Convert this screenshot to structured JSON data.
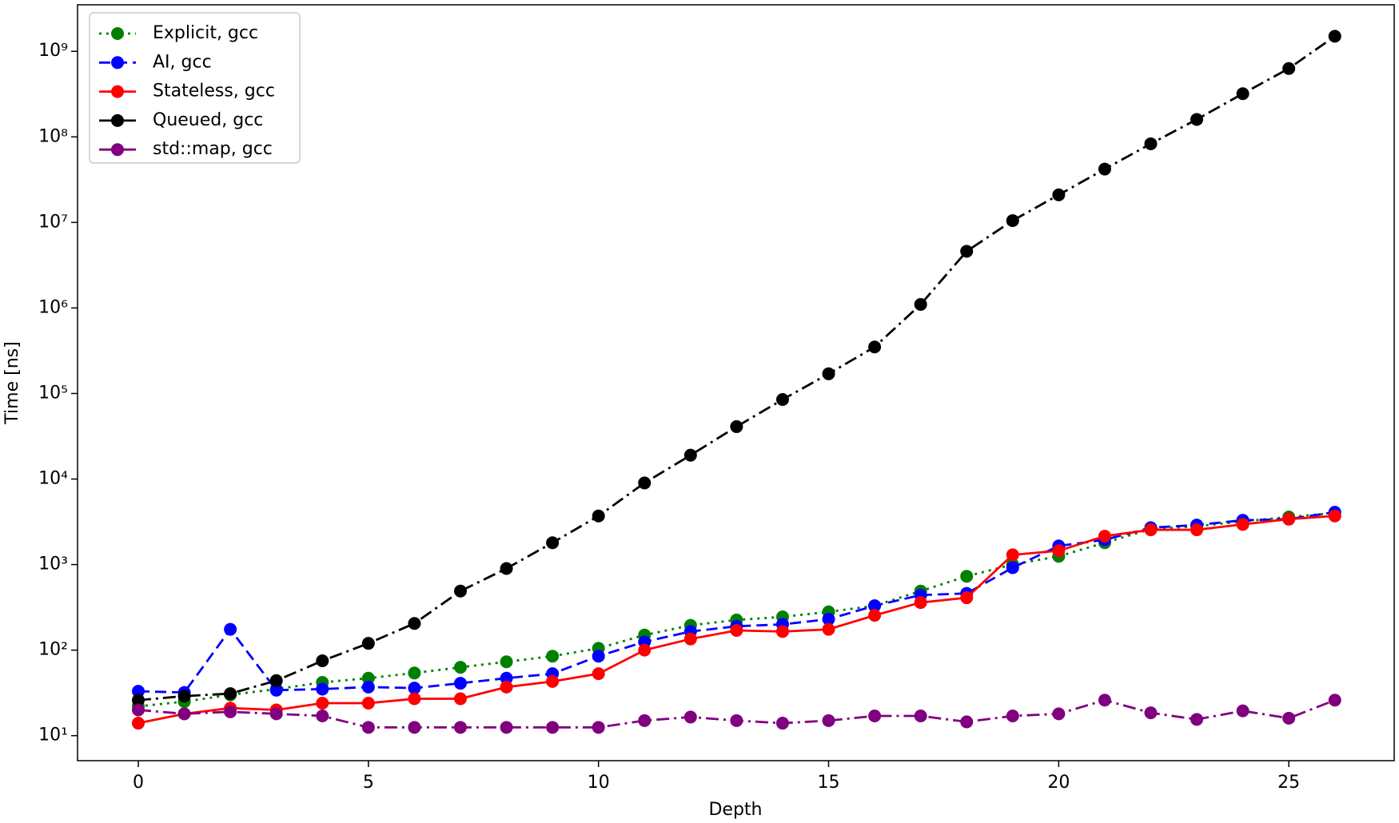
{
  "chart_data": {
    "type": "line",
    "x_label": "Depth",
    "y_label": "Time [ns]",
    "x": [
      0,
      1,
      2,
      3,
      4,
      5,
      6,
      7,
      8,
      9,
      10,
      11,
      12,
      13,
      14,
      15,
      16,
      17,
      18,
      19,
      20,
      21,
      22,
      23,
      24,
      25,
      26
    ],
    "series": [
      {
        "name": "Explicit, gcc",
        "color": "#008000",
        "linestyle": "dotted",
        "values": [
          22,
          25,
          30,
          35,
          42,
          47,
          54,
          63,
          73,
          85,
          105,
          150,
          195,
          225,
          245,
          280,
          330,
          490,
          730,
          1000,
          1250,
          1800,
          2600,
          2800,
          3200,
          3600,
          4000
        ]
      },
      {
        "name": "AI, gcc",
        "color": "#0000ff",
        "linestyle": "dashed",
        "values": [
          33,
          32,
          175,
          34,
          35,
          37,
          36,
          41,
          47,
          53,
          85,
          125,
          165,
          190,
          200,
          230,
          330,
          440,
          460,
          920,
          1650,
          1950,
          2700,
          2900,
          3300,
          3400,
          4100
        ]
      },
      {
        "name": "Stateless, gcc",
        "color": "#ff0000",
        "linestyle": "solid",
        "values": [
          14,
          18,
          21,
          20,
          24,
          24,
          27,
          27,
          37,
          43,
          53,
          100,
          135,
          170,
          165,
          175,
          255,
          360,
          410,
          1300,
          1450,
          2150,
          2550,
          2550,
          2950,
          3400,
          3700
        ]
      },
      {
        "name": "Queued, gcc",
        "color": "#000000",
        "linestyle": "dashdot",
        "values": [
          26,
          29,
          31,
          44,
          75,
          120,
          205,
          490,
          900,
          1800,
          3700,
          9000,
          19000,
          41000,
          85000,
          170000,
          350000,
          1100000,
          4600000,
          10500000,
          21000000,
          42000000,
          83000000,
          160000000,
          320000000,
          630000000,
          1500000000
        ]
      },
      {
        "name": "std::map, gcc",
        "color": "#800080",
        "linestyle": "dashdot",
        "values": [
          20,
          18,
          19,
          18,
          17,
          12.5,
          12.5,
          12.5,
          12.5,
          12.5,
          12.5,
          15,
          16.5,
          15,
          14,
          15,
          17,
          17,
          14.5,
          17,
          18,
          26,
          18.5,
          15.5,
          19.5,
          16,
          26
        ]
      }
    ],
    "xlim": [
      -1.32,
      27.29
    ],
    "xticks": [
      0,
      5,
      10,
      15,
      20,
      25
    ],
    "ylim": [
      5.1,
      3500000000
    ],
    "y_scale": "log",
    "yticks": [
      {
        "value": 10,
        "label": "10¹"
      },
      {
        "value": 100,
        "label": "10²"
      },
      {
        "value": 1000,
        "label": "10³"
      },
      {
        "value": 10000,
        "label": "10⁴"
      },
      {
        "value": 100000,
        "label": "10⁵"
      },
      {
        "value": 1000000,
        "label": "10⁶"
      },
      {
        "value": 10000000,
        "label": "10⁷"
      },
      {
        "value": 100000000,
        "label": "10⁸"
      },
      {
        "value": 1000000000,
        "label": "10⁹"
      }
    ],
    "legend": "upper left"
  }
}
